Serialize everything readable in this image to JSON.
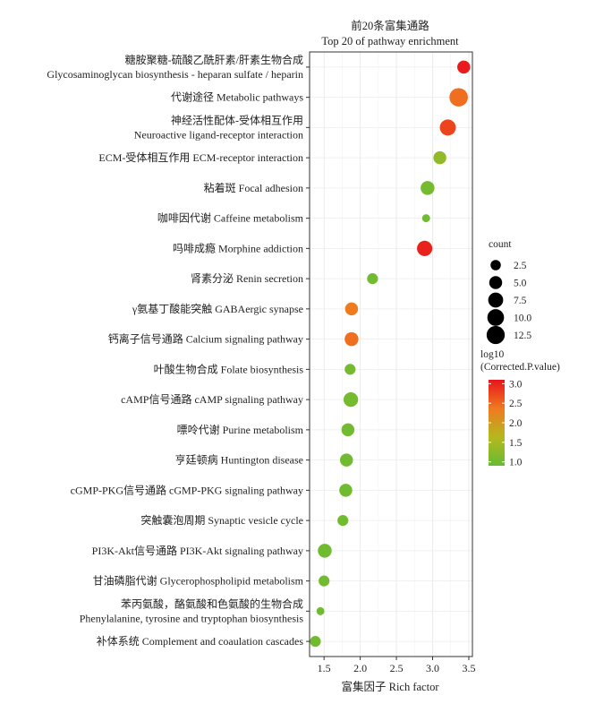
{
  "chart_data": {
    "type": "scatter",
    "title_cn": "前20条富集通路",
    "title_en": "Top 20 of pathway enrichment",
    "xlabel": "富集因子 Rich factor",
    "xlim": [
      1.3,
      3.55
    ],
    "xticks": [
      1.5,
      2.0,
      2.5,
      3.0,
      3.5
    ],
    "xtick_labels": [
      "1.5",
      "2.0",
      "2.5",
      "3.0",
      "3.5"
    ],
    "grid": true,
    "legend_position": "right",
    "pathways": [
      {
        "lines": [
          "糖胺聚糖-硫酸乙酰肝素/肝素生物合成",
          "Glycosaminoglycan biosynthesis - heparan sulfate / heparin"
        ],
        "rich_factor": 3.43,
        "count": 5,
        "log10_p": 3.05
      },
      {
        "lines": [
          "代谢途径 Metabolic pathways"
        ],
        "rich_factor": 3.36,
        "count": 13,
        "log10_p": 2.45
      },
      {
        "lines": [
          "神经活性配体-受体相互作用",
          "Neuroactive ligand-receptor interaction"
        ],
        "rich_factor": 3.21,
        "count": 9,
        "log10_p": 2.75
      },
      {
        "lines": [
          "ECM-受体相互作用 ECM-receptor interaction"
        ],
        "rich_factor": 3.1,
        "count": 5,
        "log10_p": 1.3
      },
      {
        "lines": [
          "粘着斑 Focal adhesion"
        ],
        "rich_factor": 2.93,
        "count": 6,
        "log10_p": 1.05
      },
      {
        "lines": [
          "咖啡因代谢 Caffeine metabolism"
        ],
        "rich_factor": 2.91,
        "count": 1,
        "log10_p": 1.0
      },
      {
        "lines": [
          "吗啡成瘾 Morphine addiction"
        ],
        "rich_factor": 2.89,
        "count": 8,
        "log10_p": 3.0
      },
      {
        "lines": [
          "肾素分泌 Renin secretion"
        ],
        "rich_factor": 2.17,
        "count": 3,
        "log10_p": 1.0
      },
      {
        "lines": [
          "γ氨基丁酸能突触 GABAergic synapse"
        ],
        "rich_factor": 1.88,
        "count": 5,
        "log10_p": 2.35
      },
      {
        "lines": [
          "钙离子信号通路 Calcium signaling pathway"
        ],
        "rich_factor": 1.88,
        "count": 6,
        "log10_p": 2.45
      },
      {
        "lines": [
          "叶酸生物合成 Folate biosynthesis"
        ],
        "rich_factor": 1.86,
        "count": 3,
        "log10_p": 1.05
      },
      {
        "lines": [
          "cAMP信号通路 cAMP signaling pathway"
        ],
        "rich_factor": 1.87,
        "count": 7,
        "log10_p": 1.05
      },
      {
        "lines": [
          "嘌呤代谢 Purine metabolism"
        ],
        "rich_factor": 1.83,
        "count": 5,
        "log10_p": 1.0
      },
      {
        "lines": [
          "亨廷顿病 Huntington disease"
        ],
        "rich_factor": 1.81,
        "count": 5,
        "log10_p": 1.0
      },
      {
        "lines": [
          "cGMP-PKG信号通路 cGMP-PKG signaling pathway"
        ],
        "rich_factor": 1.8,
        "count": 5,
        "log10_p": 1.0
      },
      {
        "lines": [
          "突触囊泡周期 Synaptic vesicle cycle"
        ],
        "rich_factor": 1.76,
        "count": 3,
        "log10_p": 1.0
      },
      {
        "lines": [
          "PI3K-Akt信号通路 PI3K-Akt signaling pathway"
        ],
        "rich_factor": 1.51,
        "count": 6,
        "log10_p": 1.0
      },
      {
        "lines": [
          "甘油磷脂代谢 Glycerophospholipid metabolism"
        ],
        "rich_factor": 1.5,
        "count": 3,
        "log10_p": 1.0
      },
      {
        "lines": [
          "苯丙氨酸，酪氨酸和色氨酸的生物合成",
          "Phenylalanine, tyrosine and tryptophan biosynthesis"
        ],
        "rich_factor": 1.45,
        "count": 1,
        "log10_p": 1.0
      },
      {
        "lines": [
          "补体系统 Complement and coaulation cascades"
        ],
        "rich_factor": 1.38,
        "count": 3,
        "log10_p": 1.0
      }
    ],
    "legend_size": {
      "title": "count",
      "values": [
        2.5,
        5.0,
        7.5,
        10.0,
        12.5
      ],
      "labels": [
        "2.5",
        "5.0",
        "7.5",
        "10.0",
        "12.5"
      ]
    },
    "legend_color": {
      "title_lines": [
        "log10",
        "(Corrected.P.value)"
      ],
      "values": [
        3.0,
        2.5,
        2.0,
        1.5,
        1.0
      ],
      "labels": [
        "3.0",
        "2.5",
        "2.0",
        "1.5",
        "1.0"
      ],
      "range": [
        0.9,
        3.1
      ],
      "colors": [
        "#66bb33",
        "#b5b81e",
        "#f07a1f",
        "#e8141c"
      ]
    }
  }
}
